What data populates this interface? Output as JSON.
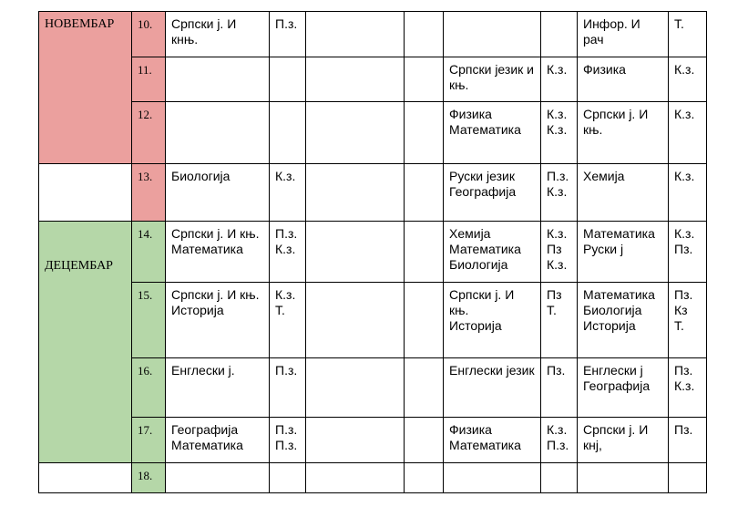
{
  "colors": {
    "november": "#eba09e",
    "december": "#b5d7a8"
  },
  "months": {
    "november": "НОВЕМБАР",
    "december": "ДЕЦЕМБАР"
  },
  "rows": [
    {
      "num": "10.",
      "c1": "Српски ј. И кнњ.",
      "c2": "П.з.",
      "c3": "",
      "c4": "",
      "c5": "",
      "c6": "",
      "c7": "Инфор. И рач",
      "c8": "Т."
    },
    {
      "num": "11.",
      "c1": "",
      "c2": "",
      "c3": "",
      "c4": "",
      "c5": "Српски језик и књ.",
      "c6": "К.з.",
      "c7": "Физика",
      "c8": "К.з."
    },
    {
      "num": "12.",
      "c1": "",
      "c2": "",
      "c3": "",
      "c4": "",
      "c5": "Физика\nМатематика",
      "c6": "К.з.\nК.з.",
      "c7": "Српски ј. И књ.",
      "c8": "К.з."
    },
    {
      "num": "13.",
      "c1": "Биологија",
      "c2": "К.з.",
      "c3": "",
      "c4": "",
      "c5": "Руски језик\nГеографија",
      "c6": "П.з.\nК.з.",
      "c7": "Хемија",
      "c8": "К.з."
    },
    {
      "num": "14.",
      "c1": "Српски ј. И књ.\nМатематика",
      "c2": "П.з.\nК.з.",
      "c3": "",
      "c4": "",
      "c5": "Хемија\nМатематика\nБиологија",
      "c6": "К.з.\nПз\nК.з.",
      "c7": "Математика\nРуски ј",
      "c8": "К.з.\nПз."
    },
    {
      "num": "15.",
      "c1": "Српски ј. И књ.\nИсторија",
      "c2": "К.з.\nТ.",
      "c3": "",
      "c4": "",
      "c5": "Српски ј. И књ.\nИсторија",
      "c6": "Пз\nТ.",
      "c7": "Математика\nБиологија\nИсторија",
      "c8": "Пз.\nКз\nТ."
    },
    {
      "num": "16.",
      "c1": "Енглески ј.",
      "c2": "П.з.",
      "c3": "",
      "c4": "",
      "c5": "Енглески језик",
      "c6": "Пз.",
      "c7": "Енглески ј\nГеографија",
      "c8": "Пз.\nК.з."
    },
    {
      "num": "17.",
      "c1": "Географија\nМатематика",
      "c2": "П.з.\nП.з.",
      "c3": "",
      "c4": "",
      "c5": "Физика\nМатематика",
      "c6": "К.з.\nП.з.",
      "c7": "Српски ј. И кнј,",
      "c8": "Пз."
    },
    {
      "num": "18.",
      "c1": "",
      "c2": "",
      "c3": "",
      "c4": "",
      "c5": "",
      "c6": "",
      "c7": "",
      "c8": ""
    }
  ]
}
